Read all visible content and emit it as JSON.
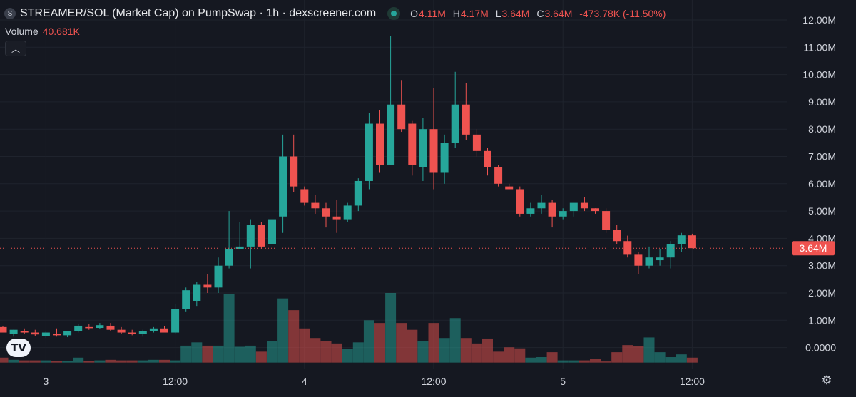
{
  "header": {
    "symbol_icon": "S",
    "title": "STREAMER/SOL (Market Cap) on PumpSwap · 1h · dexscreener.com",
    "ohlc": {
      "o_label": "O",
      "o_value": "4.11M",
      "h_label": "H",
      "h_value": "4.17M",
      "l_label": "L",
      "l_value": "3.64M",
      "c_label": "C",
      "c_value": "3.64M",
      "change": "-473.78K (-11.50%)"
    },
    "volume_label": "Volume",
    "volume_value": "40.681K",
    "collapse_icon": "chevron-up-icon"
  },
  "logo_text": "TV",
  "settings_icon": "gear-icon",
  "chart_data": {
    "type": "candlestick",
    "up_color": "#26a69a",
    "down_color": "#ef5350",
    "y_axis": {
      "ticks": [
        0,
        1,
        2,
        3,
        4,
        5,
        6,
        7,
        8,
        9,
        10,
        11,
        12
      ],
      "tick_labels": [
        "0.0000",
        "1.00M",
        "2.00M",
        "3.00M",
        "4.00M",
        "5.00M",
        "6.00M",
        "7.00M",
        "8.00M",
        "9.00M",
        "10.00M",
        "11.00M",
        "12.00M"
      ],
      "unit": "M",
      "range": [
        -0.8,
        12.5
      ]
    },
    "x_axis": {
      "tick_labels": [
        "3",
        "12:00",
        "4",
        "12:00",
        "5",
        "12:00"
      ],
      "tick_candle_index": [
        4,
        16,
        28,
        40,
        52,
        64
      ]
    },
    "current_price": 3.64,
    "current_price_label": "3.64M",
    "candles": [
      [
        0.75,
        0.8,
        0.55,
        0.55
      ],
      [
        0.5,
        0.65,
        0.4,
        0.65
      ],
      [
        0.6,
        0.7,
        0.5,
        0.55
      ],
      [
        0.55,
        0.65,
        0.42,
        0.48
      ],
      [
        0.42,
        0.6,
        0.35,
        0.55
      ],
      [
        0.5,
        0.7,
        0.4,
        0.45
      ],
      [
        0.45,
        0.6,
        0.38,
        0.6
      ],
      [
        0.6,
        0.85,
        0.55,
        0.8
      ],
      [
        0.75,
        0.85,
        0.65,
        0.72
      ],
      [
        0.72,
        0.9,
        0.68,
        0.82
      ],
      [
        0.8,
        0.9,
        0.6,
        0.65
      ],
      [
        0.65,
        0.75,
        0.5,
        0.55
      ],
      [
        0.55,
        0.65,
        0.45,
        0.5
      ],
      [
        0.5,
        0.65,
        0.4,
        0.6
      ],
      [
        0.6,
        0.75,
        0.55,
        0.7
      ],
      [
        0.7,
        0.8,
        0.55,
        0.55
      ],
      [
        0.55,
        1.6,
        0.5,
        1.4
      ],
      [
        1.4,
        2.2,
        1.3,
        2.1
      ],
      [
        1.7,
        2.4,
        1.5,
        2.3
      ],
      [
        2.3,
        2.7,
        2.0,
        2.2
      ],
      [
        2.2,
        3.3,
        2.0,
        3.0
      ],
      [
        3.0,
        5.0,
        2.9,
        3.6
      ],
      [
        3.6,
        4.6,
        3.6,
        3.7
      ],
      [
        3.7,
        4.7,
        2.9,
        4.5
      ],
      [
        4.5,
        4.6,
        3.6,
        3.7
      ],
      [
        3.8,
        5.0,
        3.6,
        4.7
      ],
      [
        4.8,
        7.8,
        4.2,
        7.0
      ],
      [
        7.0,
        7.8,
        5.7,
        5.9
      ],
      [
        5.8,
        5.9,
        5.2,
        5.3
      ],
      [
        5.3,
        5.6,
        4.9,
        5.1
      ],
      [
        5.1,
        5.3,
        4.4,
        4.8
      ],
      [
        4.8,
        5.4,
        4.2,
        4.7
      ],
      [
        4.7,
        5.3,
        4.6,
        5.2
      ],
      [
        5.2,
        6.2,
        5.0,
        6.1
      ],
      [
        6.1,
        8.6,
        5.8,
        8.2
      ],
      [
        8.2,
        8.7,
        6.4,
        6.7
      ],
      [
        6.7,
        11.4,
        6.7,
        8.9
      ],
      [
        8.9,
        9.8,
        7.9,
        8.0
      ],
      [
        8.2,
        8.3,
        6.3,
        6.7
      ],
      [
        6.6,
        8.4,
        6.1,
        8.0
      ],
      [
        8.0,
        9.5,
        5.8,
        6.4
      ],
      [
        6.4,
        7.8,
        6.0,
        7.5
      ],
      [
        7.5,
        10.1,
        7.3,
        8.9
      ],
      [
        8.9,
        9.7,
        7.6,
        7.8
      ],
      [
        7.8,
        8.0,
        7.0,
        7.2
      ],
      [
        7.2,
        7.3,
        6.3,
        6.6
      ],
      [
        6.6,
        6.7,
        5.9,
        6.0
      ],
      [
        5.9,
        6.0,
        5.8,
        5.8
      ],
      [
        5.8,
        5.9,
        4.8,
        4.9
      ],
      [
        4.9,
        5.3,
        4.8,
        5.1
      ],
      [
        5.1,
        5.6,
        4.9,
        5.3
      ],
      [
        5.3,
        5.4,
        4.4,
        4.8
      ],
      [
        4.8,
        5.1,
        4.7,
        5.0
      ],
      [
        5.0,
        5.3,
        4.8,
        5.3
      ],
      [
        5.3,
        5.5,
        5.0,
        5.1
      ],
      [
        5.1,
        5.1,
        4.9,
        5.0
      ],
      [
        5.0,
        5.1,
        4.2,
        4.3
      ],
      [
        4.3,
        4.5,
        3.8,
        3.9
      ],
      [
        3.9,
        4.1,
        3.3,
        3.4
      ],
      [
        3.4,
        3.5,
        2.7,
        3.0
      ],
      [
        3.0,
        3.7,
        2.9,
        3.3
      ],
      [
        3.2,
        3.6,
        3.0,
        3.3
      ],
      [
        3.3,
        3.9,
        2.9,
        3.8
      ],
      [
        3.8,
        4.2,
        3.5,
        4.11
      ],
      [
        4.11,
        4.17,
        3.64,
        3.64
      ]
    ],
    "volume": {
      "axis_zero_value": -0.55,
      "scale_max_value": 2.55,
      "values": [
        0.18,
        0.1,
        0.08,
        0.08,
        0.08,
        0.06,
        0.05,
        0.18,
        0.06,
        0.08,
        0.1,
        0.08,
        0.08,
        0.08,
        0.1,
        0.1,
        0.08,
        0.62,
        0.74,
        0.62,
        0.62,
        2.5,
        0.58,
        0.62,
        0.4,
        0.78,
        2.35,
        1.92,
        1.25,
        0.9,
        0.8,
        0.7,
        0.5,
        0.74,
        1.55,
        1.45,
        2.55,
        1.45,
        1.2,
        0.8,
        1.45,
        0.9,
        1.63,
        0.9,
        0.7,
        0.88,
        0.4,
        0.56,
        0.52,
        0.18,
        0.2,
        0.38,
        0.08,
        0.08,
        0.08,
        0.14,
        0.04,
        0.38,
        0.64,
        0.6,
        0.92,
        0.38,
        0.2,
        0.3,
        0.18
      ]
    }
  }
}
